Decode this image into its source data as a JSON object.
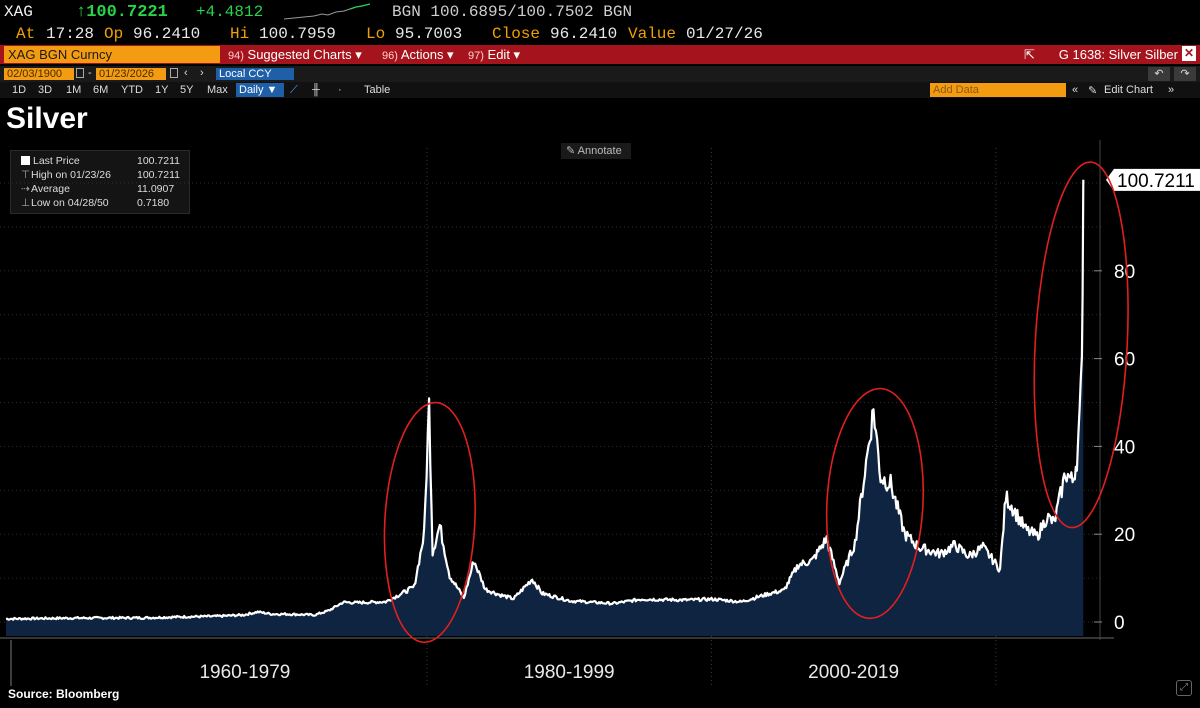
{
  "quote": {
    "ticker": "XAG",
    "last": "↑100.7221",
    "change": "+4.4812",
    "bgn_quote": "BGN 100.6895/100.7502 BGN"
  },
  "quote_line2": {
    "at_label": "At",
    "at_value": "17:28",
    "op_label": "Op",
    "op_value": "96.2410",
    "hi_label": "Hi",
    "hi_value": "100.7959",
    "lo_label": "Lo",
    "lo_value": "95.7003",
    "close_label": "Close",
    "close_value": "96.2410",
    "value_label": "Value",
    "value_value": "01/27/26"
  },
  "command_bar": {
    "security": "XAG BGN Curncy",
    "menu": [
      {
        "num": "94)",
        "label": "Suggested Charts ▾"
      },
      {
        "num": "96)",
        "label": "Actions ▾"
      },
      {
        "num": "97)",
        "label": "Edit ▾"
      }
    ],
    "graph_title": "G 1638: Silver Silber",
    "close": "✕"
  },
  "date_bar": {
    "start": "02/03/1900",
    "end": "01/23/2026",
    "currency": "Local CCY"
  },
  "toolbar": {
    "periods": [
      "1D",
      "3D",
      "1M",
      "6M",
      "YTD",
      "1Y",
      "5Y",
      "Max"
    ],
    "frequency": "Daily ▼",
    "table": "Table",
    "add_data": "Add Data",
    "edit_chart": "Edit Chart"
  },
  "title": "Silver",
  "annotate": "Annotate",
  "legend": {
    "rows": [
      {
        "label": "Last Price",
        "value": "100.7211"
      },
      {
        "label": "High on 01/23/26",
        "value": "100.7211"
      },
      {
        "label": "Average",
        "value": "11.0907"
      },
      {
        "label": "Low on 04/28/50",
        "value": "0.7180"
      }
    ]
  },
  "source": "Source: Bloomberg",
  "colors": {
    "line": "#ffffff",
    "area": "#0e2441",
    "highlight_circle": "#e0201f",
    "accent_orange": "#f39c12",
    "bar_red": "#a5141c"
  },
  "chart_data": {
    "type": "area",
    "title": "Silver",
    "series": [
      {
        "name": "Last Price"
      }
    ],
    "x": [
      1950.3,
      1955,
      1960,
      1963,
      1965,
      1967,
      1968,
      1969,
      1970,
      1972,
      1973,
      1974,
      1975,
      1977,
      1979,
      1979.7,
      1980.05,
      1980.3,
      1980.8,
      1981.5,
      1982.5,
      1983.2,
      1984,
      1985,
      1986,
      1987.3,
      1988,
      1990,
      1993,
      1995,
      1998,
      2000,
      2002,
      2004,
      2005,
      2006,
      2007,
      2008,
      2008.9,
      2010,
      2011.3,
      2011.8,
      2012.5,
      2013.5,
      2014.5,
      2016,
      2017,
      2018,
      2019,
      2020.2,
      2020.6,
      2021,
      2022,
      2022.8,
      2023.5,
      2024,
      2024.8,
      2025.3,
      2025.6,
      2025.8,
      2025.95,
      2026.05
    ],
    "values": [
      0.718,
      0.9,
      0.95,
      1.2,
      1.3,
      1.6,
      2.3,
      1.8,
      1.8,
      1.6,
      2.6,
      4.5,
      4.4,
      4.6,
      8.0,
      20.0,
      49.5,
      16.0,
      22.0,
      10.5,
      5.5,
      14.0,
      7.5,
      6.2,
      5.3,
      9.8,
      6.5,
      4.8,
      4.2,
      5.2,
      5.0,
      5.2,
      4.6,
      6.5,
      7.2,
      13.0,
      14.0,
      19.0,
      9.0,
      18.0,
      48.5,
      33.0,
      31.5,
      20.0,
      17.0,
      15.5,
      17.5,
      15.0,
      17.0,
      12.0,
      28.5,
      26.5,
      21.0,
      19.5,
      24.0,
      22.5,
      34.0,
      32.0,
      37.0,
      47.0,
      58.0,
      100.7211
    ],
    "ylim": [
      0,
      110
    ],
    "xlim": [
      1950.3,
      2026.1
    ],
    "yticks": [
      0,
      20,
      40,
      60,
      80
    ],
    "x_period_labels": [
      "1960-1979",
      "1980-1999",
      "2000-2019"
    ],
    "x_period_dividers": [
      1979.9,
      1999.9,
      2019.9
    ],
    "last_value_label": "100.7211",
    "highlight_regions": [
      {
        "x_center": 1980.1,
        "y_center": 22
      },
      {
        "x_center": 2011.4,
        "y_center": 27
      },
      {
        "x_center": 2025.9,
        "y_center": 62
      }
    ]
  }
}
